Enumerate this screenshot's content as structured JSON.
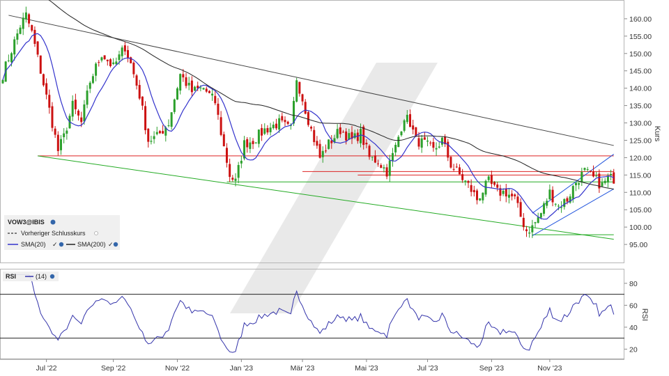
{
  "chart_data": [
    {
      "type": "candlestick",
      "symbol": "VOW3@IBIS",
      "ylabel": "Kurs",
      "ylim": [
        90,
        165
      ],
      "y_ticks": [
        "95.00",
        "100.00",
        "105.00",
        "110.00",
        "115.00",
        "120.00",
        "125.00",
        "130.00",
        "135.00",
        "140.00",
        "145.00",
        "150.00",
        "155.00",
        "160.00"
      ],
      "x_ticks": [
        "Jul '22",
        "Sep '22",
        "Nov '22",
        "Jan '23",
        "Mär '23",
        "Mai '23",
        "Jul '23",
        "Sep '23",
        "Nov '23"
      ],
      "grid": false,
      "legend": [
        {
          "label": "VOW3@IBIS",
          "style": "symbol"
        },
        {
          "label": "Vorheriger Schlusskurs",
          "style": "dashed",
          "color": "#333333"
        },
        {
          "label": "SMA(20)",
          "style": "line",
          "color": "#3333cc"
        },
        {
          "label": "SMA(200)",
          "style": "line",
          "color": "#222222"
        }
      ],
      "colors": {
        "up": "#2ca02c",
        "down": "#cc1111",
        "sma20": "#3333cc",
        "sma200": "#222222",
        "resistance": "#dd2222",
        "support": "#22aa22",
        "channel": "#2255dd",
        "trend": "#444444"
      },
      "anchors": [
        {
          "x": 0,
          "y": 144
        },
        {
          "x": 6,
          "y": 158
        },
        {
          "x": 8,
          "y": 161
        },
        {
          "x": 10,
          "y": 156
        },
        {
          "x": 13,
          "y": 145
        },
        {
          "x": 17,
          "y": 130
        },
        {
          "x": 19,
          "y": 122
        },
        {
          "x": 21,
          "y": 126
        },
        {
          "x": 24,
          "y": 135
        },
        {
          "x": 27,
          "y": 130
        },
        {
          "x": 30,
          "y": 142
        },
        {
          "x": 34,
          "y": 150
        },
        {
          "x": 38,
          "y": 146
        },
        {
          "x": 42,
          "y": 152
        },
        {
          "x": 44,
          "y": 147
        },
        {
          "x": 47,
          "y": 138
        },
        {
          "x": 50,
          "y": 125
        },
        {
          "x": 53,
          "y": 126
        },
        {
          "x": 57,
          "y": 130
        },
        {
          "x": 61,
          "y": 144
        },
        {
          "x": 65,
          "y": 139
        },
        {
          "x": 69,
          "y": 140
        },
        {
          "x": 73,
          "y": 136
        },
        {
          "x": 76,
          "y": 123
        },
        {
          "x": 78,
          "y": 115
        },
        {
          "x": 80,
          "y": 113
        },
        {
          "x": 83,
          "y": 124
        },
        {
          "x": 86,
          "y": 125
        },
        {
          "x": 90,
          "y": 128
        },
        {
          "x": 95,
          "y": 130
        },
        {
          "x": 99,
          "y": 128
        },
        {
          "x": 101,
          "y": 143
        },
        {
          "x": 103,
          "y": 137
        },
        {
          "x": 106,
          "y": 128
        },
        {
          "x": 109,
          "y": 120
        },
        {
          "x": 112,
          "y": 124
        },
        {
          "x": 116,
          "y": 128
        },
        {
          "x": 120,
          "y": 125
        },
        {
          "x": 123,
          "y": 127
        },
        {
          "x": 126,
          "y": 120
        },
        {
          "x": 129,
          "y": 119
        },
        {
          "x": 132,
          "y": 116
        },
        {
          "x": 135,
          "y": 123
        },
        {
          "x": 138,
          "y": 132
        },
        {
          "x": 140,
          "y": 130
        },
        {
          "x": 142,
          "y": 125
        },
        {
          "x": 145,
          "y": 124
        },
        {
          "x": 148,
          "y": 122
        },
        {
          "x": 151,
          "y": 125
        },
        {
          "x": 154,
          "y": 118
        },
        {
          "x": 157,
          "y": 115
        },
        {
          "x": 160,
          "y": 112
        },
        {
          "x": 163,
          "y": 108
        },
        {
          "x": 167,
          "y": 113
        },
        {
          "x": 170,
          "y": 110
        },
        {
          "x": 173,
          "y": 110
        },
        {
          "x": 176,
          "y": 108
        },
        {
          "x": 178,
          "y": 103
        },
        {
          "x": 180,
          "y": 99
        },
        {
          "x": 182,
          "y": 100
        },
        {
          "x": 185,
          "y": 104
        },
        {
          "x": 188,
          "y": 110
        },
        {
          "x": 191,
          "y": 106
        },
        {
          "x": 194,
          "y": 108
        },
        {
          "x": 197,
          "y": 113
        },
        {
          "x": 200,
          "y": 116
        },
        {
          "x": 203,
          "y": 114
        },
        {
          "x": 206,
          "y": 112
        },
        {
          "x": 208,
          "y": 114
        }
      ],
      "overlay_lines": [
        {
          "kind": "trend",
          "from": {
            "x": 2,
            "y": 161
          },
          "to": {
            "x": 210,
            "y": 123.5
          }
        },
        {
          "kind": "resistance",
          "from": {
            "x": 12,
            "y": 120.5
          },
          "to": {
            "x": 210,
            "y": 120.5
          }
        },
        {
          "kind": "support",
          "from": {
            "x": 12,
            "y": 120.5
          },
          "to": {
            "x": 210,
            "y": 96.5
          }
        },
        {
          "kind": "resistance",
          "from": {
            "x": 103,
            "y": 116
          },
          "to": {
            "x": 210,
            "y": 116
          }
        },
        {
          "kind": "resistance",
          "from": {
            "x": 122,
            "y": 115
          },
          "to": {
            "x": 210,
            "y": 115
          }
        },
        {
          "kind": "support",
          "from": {
            "x": 77,
            "y": 113
          },
          "to": {
            "x": 210,
            "y": 113
          }
        },
        {
          "kind": "support",
          "from": {
            "x": 182,
            "y": 97.8
          },
          "to": {
            "x": 210,
            "y": 97.8
          }
        },
        {
          "kind": "channel",
          "from": {
            "x": 182,
            "y": 104
          },
          "to": {
            "x": 210,
            "y": 121
          }
        },
        {
          "kind": "channel",
          "from": {
            "x": 182,
            "y": 97.5
          },
          "to": {
            "x": 210,
            "y": 111
          }
        }
      ]
    },
    {
      "type": "line",
      "name": "RSI",
      "legend": [
        {
          "label": "RSI",
          "style": "symbol"
        },
        {
          "label": "(14)",
          "style": "line",
          "color": "#3333aa"
        }
      ],
      "ylabel": "RSI",
      "ylim": [
        12,
        92
      ],
      "y_ticks": [
        "20",
        "40",
        "60",
        "80"
      ],
      "thresholds": [
        70,
        30
      ],
      "colors": {
        "line": "#3333aa",
        "threshold": "#222222"
      }
    }
  ]
}
